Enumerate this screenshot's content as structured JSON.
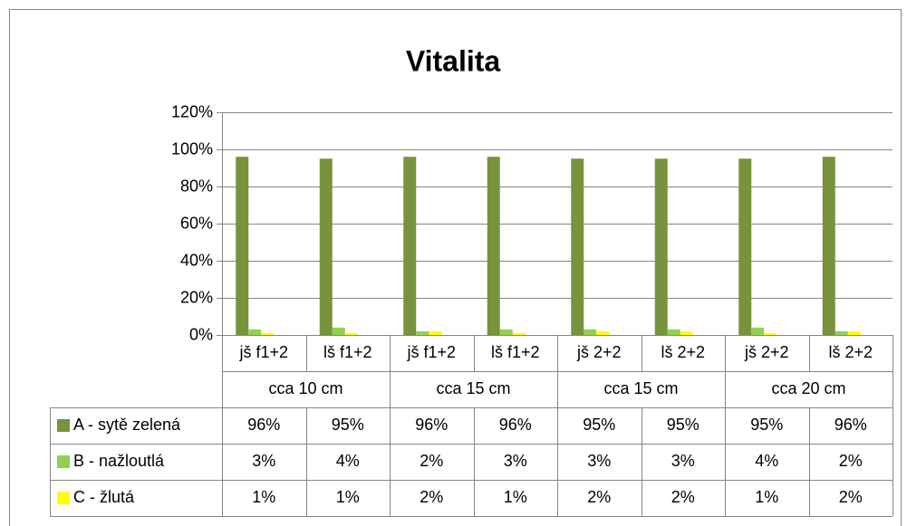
{
  "chart_data": {
    "type": "bar",
    "title": "Vitalita",
    "categories": [
      "jš f1+2",
      "lš f1+2",
      "jš f1+2",
      "lš f1+2",
      "jš 2+2",
      "lš 2+2",
      "jš 2+2",
      "lš 2+2"
    ],
    "category_groups": [
      "cca 10 cm",
      "cca 15 cm",
      "cca 15 cm",
      "cca 20 cm"
    ],
    "series": [
      {
        "name": "A - sytě zelená",
        "color": "#77933c",
        "values": [
          96,
          95,
          96,
          96,
          95,
          95,
          95,
          96
        ],
        "value_labels": [
          "96%",
          "95%",
          "96%",
          "96%",
          "95%",
          "95%",
          "95%",
          "96%"
        ]
      },
      {
        "name": "B - nažloutlá",
        "color": "#92d050",
        "values": [
          3,
          4,
          2,
          3,
          3,
          3,
          4,
          2
        ],
        "value_labels": [
          "3%",
          "4%",
          "2%",
          "3%",
          "3%",
          "3%",
          "4%",
          "2%"
        ]
      },
      {
        "name": "C - žlutá",
        "color": "#ffff00",
        "values": [
          1,
          1,
          2,
          1,
          2,
          2,
          1,
          2
        ],
        "value_labels": [
          "1%",
          "1%",
          "2%",
          "1%",
          "2%",
          "2%",
          "1%",
          "2%"
        ]
      }
    ],
    "ylim": [
      0,
      120
    ],
    "yticks": [
      {
        "value": 0,
        "label": "0%"
      },
      {
        "value": 20,
        "label": "20%"
      },
      {
        "value": 40,
        "label": "40%"
      },
      {
        "value": 60,
        "label": "60%"
      },
      {
        "value": 80,
        "label": "80%"
      },
      {
        "value": 100,
        "label": "100%"
      },
      {
        "value": 120,
        "label": "120%"
      }
    ],
    "grid": true
  }
}
